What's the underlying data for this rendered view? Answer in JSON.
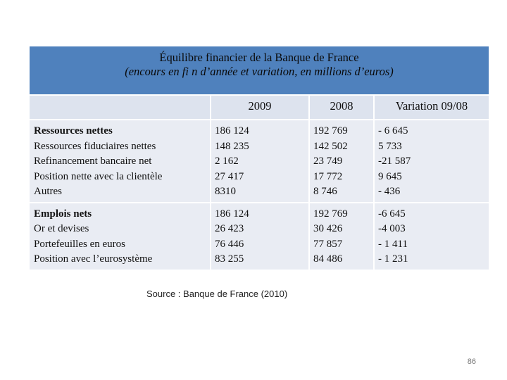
{
  "table": {
    "title": "Équilibre financier   de la Banque de France",
    "subtitle": "(encours en fi n d’année et variation, en millions d’euros)",
    "headers": [
      "2009",
      "2008",
      "Variation 09/08"
    ],
    "rows": [
      {
        "labels": [
          "Ressources nettes",
          "Ressources fiduciaires nettes",
          "Refinancement bancaire net",
          "Position nette avec la clientèle",
          "Autres"
        ],
        "col2009": [
          "186 124",
          "148 235",
          "2 162",
          "27 417",
          "8310"
        ],
        "col2008": [
          "192 769",
          "142 502",
          "23 749",
          "17 772",
          "8 746"
        ],
        "variation": [
          "- 6 645",
          "5 733",
          "-21 587",
          "9 645",
          "- 436"
        ]
      },
      {
        "labels": [
          "Emplois nets",
          "Or et devises",
          "Portefeuilles en euros",
          "Position avec l’eurosystème"
        ],
        "col2009": [
          "186 124",
          "26 423",
          "76 446",
          "83 255"
        ],
        "col2008": [
          "192 769",
          "30 426",
          "77 857",
          "84 486"
        ],
        "variation": [
          "-6 645",
          "-4 003",
          "- 1 411",
          "- 1 231"
        ]
      }
    ]
  },
  "source": "Source : Banque de France (2010)",
  "page_number": "86"
}
